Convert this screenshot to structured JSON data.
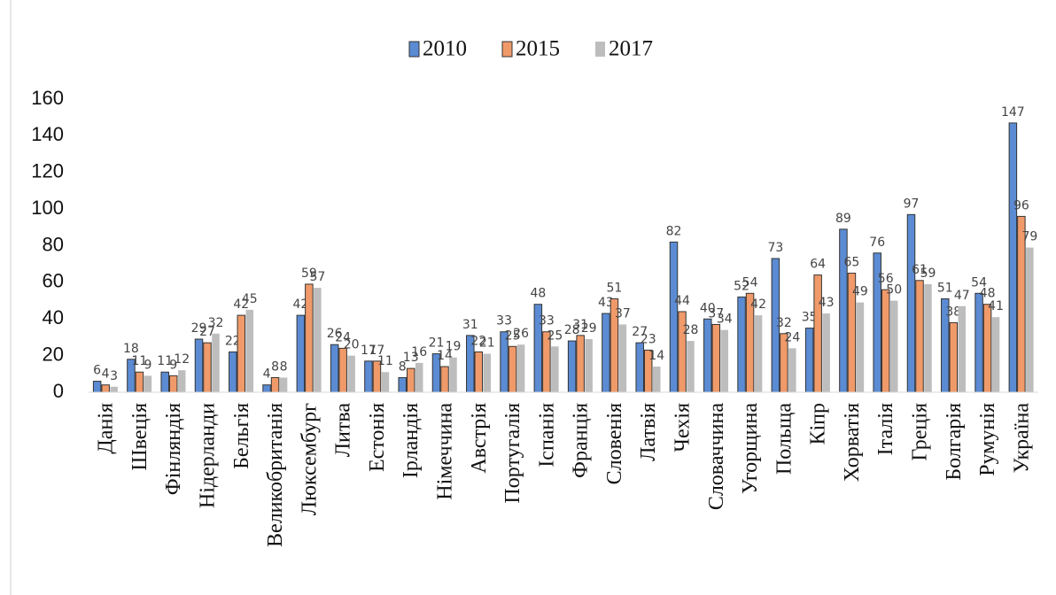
{
  "chart_data": {
    "type": "bar",
    "categories": [
      "Данія",
      "Швеція",
      "Фінляндія",
      "Нідерланди",
      "Бельгія",
      "Великобританія",
      "Люксембург",
      "Литва",
      "Естонія",
      "Ірландія",
      "Німеччина",
      "Австрія",
      "Португалія",
      "Іспанія",
      "Франція",
      "Словенія",
      "Латвія",
      "Чехія",
      "Словаччина",
      "Угорщина",
      "Польща",
      "Кіпр",
      "Хорватія",
      "Італія",
      "Греція",
      "Болгарія",
      "Румунія",
      "Україна"
    ],
    "series": [
      {
        "name": "2010",
        "color": "#5b8bd3",
        "values": [
          6,
          18,
          11,
          29,
          22,
          4,
          42,
          26,
          17,
          8,
          21,
          31,
          33,
          48,
          28,
          43,
          27,
          82,
          40,
          52,
          73,
          35,
          89,
          76,
          97,
          51,
          54,
          147
        ]
      },
      {
        "name": "2015",
        "color": "#f09a6a",
        "values": [
          4,
          11,
          9,
          27,
          42,
          8,
          59,
          24,
          17,
          13,
          14,
          22,
          25,
          33,
          31,
          51,
          23,
          44,
          37,
          54,
          32,
          64,
          65,
          56,
          61,
          38,
          48,
          96
        ]
      },
      {
        "name": "2017",
        "color": "#bdbdbd",
        "values": [
          3,
          9,
          12,
          32,
          45,
          8,
          57,
          20,
          11,
          16,
          19,
          21,
          26,
          25,
          29,
          37,
          14,
          28,
          34,
          42,
          24,
          43,
          49,
          50,
          59,
          47,
          41,
          79
        ]
      }
    ],
    "ylim": [
      0,
      160
    ],
    "yticks": [
      0,
      20,
      40,
      60,
      80,
      100,
      120,
      140,
      160
    ]
  }
}
